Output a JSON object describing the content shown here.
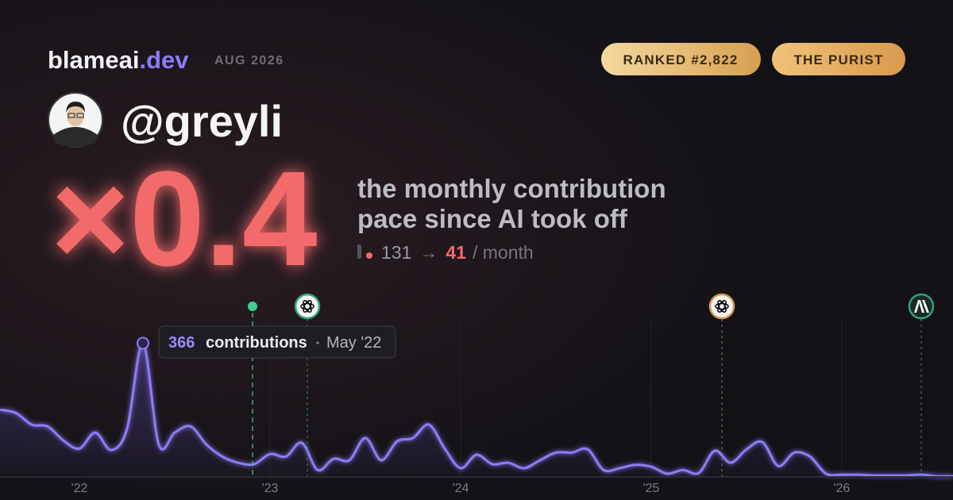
{
  "header": {
    "brand": "blameai",
    "brand_tld": ".dev",
    "date": "AUG 2026"
  },
  "badges": [
    "RANKED #2,822",
    "THE PURIST"
  ],
  "profile": {
    "handle": "@greyli"
  },
  "hero": {
    "multiplier": "×0.4",
    "description": [
      "the monthly contribution",
      "pace since AI took off"
    ],
    "before": 131,
    "arrow": "→",
    "after": 41,
    "unit": "/ month"
  },
  "chart_data": {
    "type": "line",
    "categories": [
      null,
      null,
      null,
      null,
      null,
      "'22",
      null,
      null,
      null,
      null,
      null,
      null,
      null,
      null,
      null,
      null,
      null,
      "'23",
      null,
      null,
      null,
      null,
      null,
      null,
      null,
      null,
      null,
      null,
      null,
      "'24",
      null,
      null,
      null,
      null,
      null,
      null,
      null,
      null,
      null,
      null,
      null,
      "'25",
      null,
      null,
      null,
      null,
      null,
      null,
      null,
      null,
      null,
      null,
      null,
      "'26",
      null,
      null,
      null,
      null,
      null,
      null,
      null
    ],
    "series": [
      {
        "name": "contributions",
        "color": "#8b7cf6",
        "values": [
          183,
          174,
          142,
          137,
          98,
          76,
          120,
          72,
          131,
          366,
          87,
          120,
          137,
          87,
          54,
          37,
          33,
          61,
          54,
          92,
          17,
          48,
          44,
          105,
          44,
          96,
          105,
          142,
          76,
          22,
          59,
          33,
          37,
          22,
          44,
          65,
          65,
          74,
          17,
          22,
          31,
          26,
          7,
          17,
          9,
          70,
          37,
          74,
          94,
          28,
          65,
          54,
          7,
          4,
          4,
          2,
          2,
          2,
          4,
          0,
          0
        ]
      }
    ],
    "ylim": [
      0,
      380
    ],
    "tooltip": {
      "point": 9,
      "label": "contributions",
      "date": "May '22"
    }
  }
}
